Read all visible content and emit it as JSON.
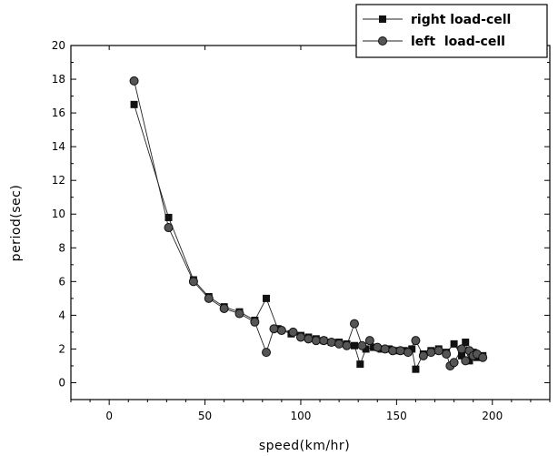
{
  "chart_data": {
    "type": "line",
    "xlabel": "speed(km/hr)",
    "ylabel": "period(sec)",
    "xlim": [
      -20,
      230
    ],
    "ylim": [
      -1,
      20
    ],
    "xticks": [
      0,
      50,
      100,
      150,
      200
    ],
    "yticks": [
      0,
      2,
      4,
      6,
      8,
      10,
      12,
      14,
      16,
      18,
      20
    ],
    "legend_position": "top-right",
    "grid": false,
    "series": [
      {
        "name": "right load-cell",
        "marker": "square",
        "x": [
          13,
          31,
          44,
          52,
          60,
          68,
          76,
          82,
          88,
          95,
          100,
          104,
          108,
          112,
          116,
          120,
          124,
          128,
          131,
          134,
          138,
          142,
          146,
          150,
          154,
          158,
          160,
          164,
          168,
          172,
          176,
          180,
          184,
          186,
          188,
          190,
          192,
          195
        ],
        "y": [
          16.5,
          9.8,
          6.1,
          5.1,
          4.5,
          4.2,
          3.7,
          5.0,
          3.2,
          2.9,
          2.8,
          2.7,
          2.6,
          2.5,
          2.4,
          2.4,
          2.3,
          2.2,
          1.1,
          2.0,
          2.1,
          2.0,
          2.0,
          1.9,
          1.9,
          2.0,
          0.8,
          1.7,
          1.9,
          2.0,
          1.8,
          2.3,
          1.6,
          2.4,
          1.3,
          1.8,
          1.5,
          1.6
        ]
      },
      {
        "name": "left  load-cell",
        "marker": "circle",
        "x": [
          13,
          31,
          44,
          52,
          60,
          68,
          76,
          82,
          86,
          90,
          96,
          100,
          104,
          108,
          112,
          116,
          120,
          124,
          128,
          132,
          136,
          140,
          144,
          148,
          152,
          156,
          160,
          164,
          168,
          172,
          176,
          178,
          180,
          184,
          186,
          188,
          190,
          192,
          195
        ],
        "y": [
          17.9,
          9.2,
          6.0,
          5.0,
          4.4,
          4.1,
          3.6,
          1.8,
          3.2,
          3.1,
          3.0,
          2.7,
          2.6,
          2.5,
          2.5,
          2.4,
          2.3,
          2.2,
          3.5,
          2.2,
          2.5,
          2.1,
          2.0,
          1.9,
          1.9,
          1.8,
          2.5,
          1.6,
          1.8,
          1.9,
          1.7,
          1.0,
          1.2,
          2.0,
          1.3,
          1.9,
          1.6,
          1.7,
          1.5
        ]
      }
    ]
  }
}
